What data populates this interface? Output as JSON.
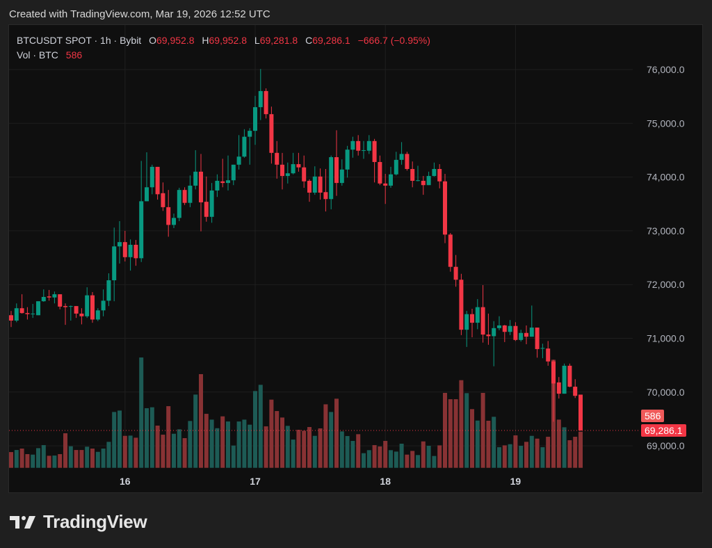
{
  "caption": "Created with TradingView.com, Mar 19, 2026 12:52 UTC",
  "legend": {
    "symbol": "BTCUSDT SPOT · 1h · Bybit",
    "o_label": "O",
    "o": "69,952.8",
    "h_label": "H",
    "h": "69,952.8",
    "l_label": "L",
    "l": "69,281.8",
    "c_label": "C",
    "c": "69,286.1",
    "change": "−666.7 (−0.95%)",
    "vol_label": "Vol · BTC",
    "vol": "586"
  },
  "price_tag": "69,286.1",
  "volume_tag": "586",
  "brand": "TradingView",
  "colors": {
    "up": "#089981",
    "down": "#f23645",
    "vol_up": "#1d5b55",
    "vol_down": "#883234",
    "grid": "#1f1f1f",
    "axis_text": "#b2b5be"
  },
  "chart_data": {
    "type": "candlestick",
    "title": "BTCUSDT SPOT · 1h · Bybit",
    "ylim": [
      68600,
      76300
    ],
    "y_ticks": [
      "76,000.0",
      "75,000.0",
      "74,000.0",
      "73,000.0",
      "72,000.0",
      "71,000.0",
      "70,000.0",
      "69,000.0"
    ],
    "y_tick_values": [
      76000,
      75000,
      74000,
      73000,
      72000,
      71000,
      70000,
      69000
    ],
    "x_ticks": [
      {
        "label": "16",
        "index": 21
      },
      {
        "label": "17",
        "index": 45
      },
      {
        "label": "18",
        "index": 69
      },
      {
        "label": "19",
        "index": 93
      }
    ],
    "last_price": 69286.1,
    "ohlc": [
      [
        71430,
        71510,
        71210,
        71330
      ],
      [
        71330,
        71650,
        71300,
        71560
      ],
      [
        71560,
        71820,
        71460,
        71470
      ],
      [
        71470,
        71580,
        71350,
        71450
      ],
      [
        71450,
        71640,
        71380,
        71460
      ],
      [
        71430,
        71690,
        71430,
        71690
      ],
      [
        71690,
        71910,
        71680,
        71770
      ],
      [
        71780,
        71900,
        71700,
        71760
      ],
      [
        71760,
        71870,
        71650,
        71820
      ],
      [
        71820,
        71820,
        71540,
        71590
      ],
      [
        71600,
        71650,
        71250,
        71580
      ],
      [
        71590,
        71610,
        71330,
        71600
      ],
      [
        71600,
        71600,
        71380,
        71460
      ],
      [
        71460,
        71560,
        71260,
        71410
      ],
      [
        71410,
        71950,
        71380,
        71800
      ],
      [
        71800,
        71860,
        71290,
        71350
      ],
      [
        71350,
        71560,
        71320,
        71520
      ],
      [
        71520,
        71910,
        71410,
        71700
      ],
      [
        71700,
        72210,
        71600,
        72080
      ],
      [
        72080,
        73060,
        71690,
        72710
      ],
      [
        72710,
        73180,
        72390,
        72790
      ],
      [
        72790,
        73000,
        72430,
        72510
      ],
      [
        72510,
        72840,
        72260,
        72740
      ],
      [
        72740,
        72830,
        72350,
        72490
      ],
      [
        72490,
        74300,
        72420,
        73550
      ],
      [
        73550,
        74460,
        73550,
        73810
      ],
      [
        73810,
        74230,
        73680,
        74190
      ],
      [
        74190,
        74190,
        73580,
        73680
      ],
      [
        73700,
        73900,
        73370,
        73440
      ],
      [
        73440,
        73760,
        72890,
        73110
      ],
      [
        73110,
        73320,
        73050,
        73240
      ],
      [
        73240,
        73800,
        73180,
        73760
      ],
      [
        73760,
        73810,
        73480,
        73520
      ],
      [
        73520,
        74030,
        73440,
        73840
      ],
      [
        73840,
        74500,
        73770,
        74100
      ],
      [
        74100,
        74430,
        72990,
        73530
      ],
      [
        73540,
        74010,
        73170,
        73260
      ],
      [
        73260,
        73890,
        73150,
        73750
      ],
      [
        73750,
        74050,
        73630,
        73930
      ],
      [
        73920,
        74340,
        73810,
        73890
      ],
      [
        73890,
        74400,
        73750,
        73940
      ],
      [
        73940,
        74230,
        73850,
        74230
      ],
      [
        74230,
        74780,
        74140,
        74380
      ],
      [
        74380,
        74890,
        74360,
        74750
      ],
      [
        74750,
        74910,
        74230,
        74860
      ],
      [
        74860,
        75510,
        74600,
        75300
      ],
      [
        75300,
        76010,
        75060,
        75600
      ],
      [
        75600,
        75650,
        75090,
        75170
      ],
      [
        75170,
        75310,
        74250,
        74450
      ],
      [
        74450,
        74670,
        73970,
        74230
      ],
      [
        74230,
        74450,
        73770,
        74020
      ],
      [
        74020,
        74270,
        73880,
        74070
      ],
      [
        74070,
        74450,
        74050,
        74240
      ],
      [
        74240,
        74450,
        74100,
        74180
      ],
      [
        74180,
        74400,
        73800,
        73920
      ],
      [
        73930,
        73960,
        73540,
        73710
      ],
      [
        73710,
        74200,
        73670,
        74010
      ],
      [
        74010,
        74160,
        73580,
        73710
      ],
      [
        73720,
        74150,
        73360,
        73590
      ],
      [
        73590,
        74400,
        73400,
        74370
      ],
      [
        74370,
        74870,
        73650,
        73890
      ],
      [
        73890,
        74330,
        73840,
        74140
      ],
      [
        74140,
        74580,
        73990,
        74510
      ],
      [
        74510,
        74750,
        74360,
        74670
      ],
      [
        74670,
        74780,
        74400,
        74490
      ],
      [
        74490,
        74670,
        74340,
        74500
      ],
      [
        74490,
        74780,
        74430,
        74670
      ],
      [
        74670,
        74710,
        73900,
        74280
      ],
      [
        74280,
        74400,
        73850,
        73880
      ],
      [
        73880,
        74060,
        73500,
        73840
      ],
      [
        73840,
        74190,
        73800,
        74050
      ],
      [
        74050,
        74470,
        74030,
        74320
      ],
      [
        74320,
        74650,
        74230,
        74430
      ],
      [
        74430,
        74470,
        74120,
        74150
      ],
      [
        74150,
        74290,
        73810,
        73930
      ],
      [
        73930,
        74210,
        73920,
        73940
      ],
      [
        73930,
        74020,
        73670,
        73850
      ],
      [
        73850,
        74100,
        73850,
        74020
      ],
      [
        74020,
        74270,
        74010,
        74150
      ],
      [
        74150,
        74240,
        73790,
        73920
      ],
      [
        73920,
        74060,
        72770,
        72930
      ],
      [
        72930,
        72960,
        72240,
        72330
      ],
      [
        72330,
        72550,
        71960,
        72090
      ],
      [
        72090,
        72200,
        71060,
        71160
      ],
      [
        71160,
        71510,
        70840,
        71450
      ],
      [
        71450,
        71550,
        71020,
        71290
      ],
      [
        71290,
        71730,
        71170,
        71580
      ],
      [
        71580,
        71990,
        70920,
        71070
      ],
      [
        71070,
        71460,
        70880,
        71040
      ],
      [
        71040,
        71320,
        70480,
        71190
      ],
      [
        71190,
        71410,
        71150,
        71240
      ],
      [
        71240,
        71250,
        70930,
        71120
      ],
      [
        71120,
        71340,
        71060,
        71230
      ],
      [
        71230,
        71300,
        70950,
        70970
      ],
      [
        70970,
        71160,
        70940,
        71100
      ],
      [
        71100,
        71240,
        70890,
        71030
      ],
      [
        71030,
        71610,
        71030,
        71200
      ],
      [
        71200,
        71200,
        70640,
        70800
      ],
      [
        70810,
        70900,
        70630,
        70820
      ],
      [
        70810,
        70950,
        70490,
        70570
      ],
      [
        70570,
        70600,
        69450,
        70160
      ],
      [
        70180,
        70280,
        69880,
        69970
      ],
      [
        69970,
        70530,
        69970,
        70490
      ],
      [
        70490,
        70530,
        70090,
        70100
      ],
      [
        70100,
        70240,
        69890,
        69930
      ],
      [
        69952.8,
        69952.8,
        69281.8,
        69286.1
      ]
    ],
    "volume": [
      255,
      289,
      312,
      222,
      214,
      319,
      368,
      195,
      199,
      222,
      560,
      349,
      289,
      289,
      342,
      312,
      259,
      312,
      421,
      905,
      928,
      518,
      522,
      488,
      1788,
      966,
      981,
      684,
      537,
      999,
      552,
      624,
      481,
      759,
      1187,
      1518,
      875,
      781,
      642,
      834,
      751,
      361,
      751,
      781,
      699,
      1244,
      1345,
      672,
      1105,
      920,
      815,
      680,
      458,
      616,
      601,
      661,
      518,
      639,
      1029,
      905,
      1120,
      590,
      515,
      436,
      545,
      237,
      286,
      368,
      346,
      436,
      286,
      263,
      391,
      214,
      274,
      207,
      428,
      357,
      192,
      364,
      1214,
      1112,
      1112,
      1420,
      1210,
      951,
      766,
      1214,
      763,
      827,
      334,
      364,
      383,
      526,
      357,
      421,
      518,
      473,
      334,
      503,
      1751,
      781,
      657,
      447,
      503,
      586
    ]
  }
}
